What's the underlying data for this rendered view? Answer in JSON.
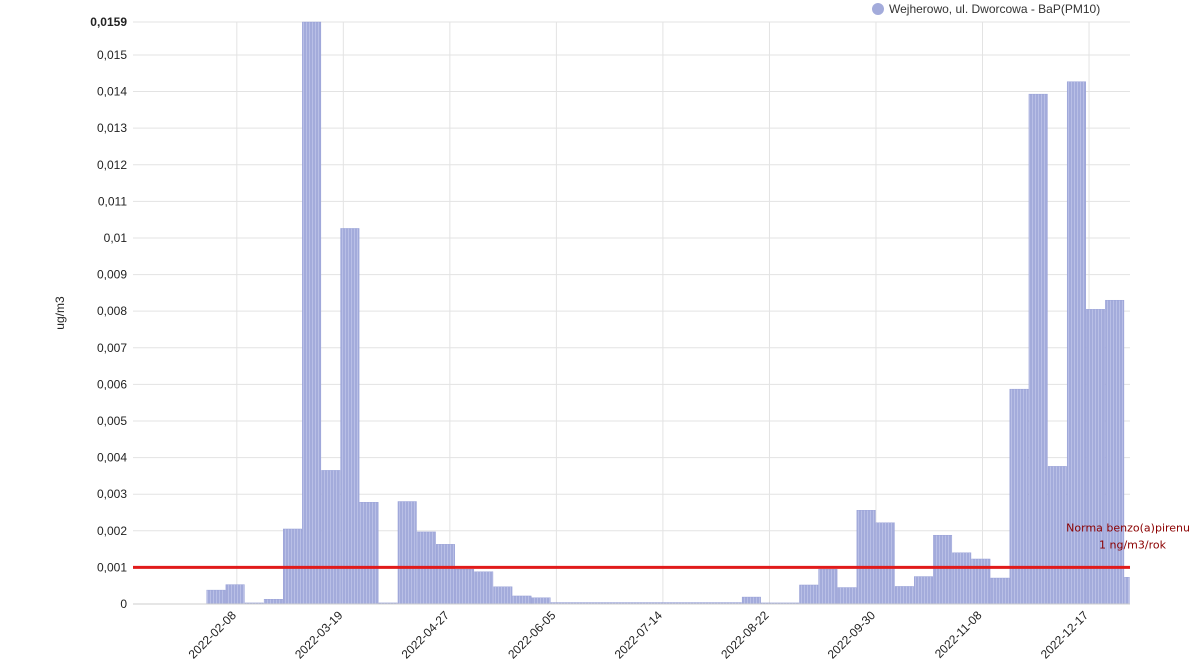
{
  "chart_data": {
    "type": "bar",
    "ylabel": "ug/m3",
    "ylim": [
      0,
      0.0159
    ],
    "y_ticks": [
      "0",
      "0,001",
      "0,002",
      "0,003",
      "0,004",
      "0,005",
      "0,006",
      "0,007",
      "0,008",
      "0,009",
      "0,01",
      "0,011",
      "0,012",
      "0,013",
      "0,014",
      "0,015",
      "0,0159"
    ],
    "x_tick_labels": [
      "2022-02-08",
      "2022-03-19",
      "2022-04-27",
      "2022-06-05",
      "2022-07-14",
      "2022-08-22",
      "2022-09-30",
      "2022-11-08",
      "2022-12-17"
    ],
    "x_range": [
      "2022-01-01",
      "2022-12-31"
    ],
    "grid": true,
    "legend_position": "top-right",
    "series": [
      {
        "name": "Wejherowo, ul. Dworcowa - BaP(PM10)",
        "color": "#a3abdb",
        "bars": [
          {
            "start": "2022-01-01",
            "end": "2022-01-28",
            "value": 0
          },
          {
            "start": "2022-01-28",
            "end": "2022-02-04",
            "value": 0.00038
          },
          {
            "start": "2022-02-04",
            "end": "2022-02-11",
            "value": 0.00053
          },
          {
            "start": "2022-02-11",
            "end": "2022-02-18",
            "value": 3e-05
          },
          {
            "start": "2022-02-18",
            "end": "2022-02-25",
            "value": 0.00013
          },
          {
            "start": "2022-02-25",
            "end": "2022-03-04",
            "value": 0.00205
          },
          {
            "start": "2022-03-04",
            "end": "2022-03-11",
            "value": 0.0159
          },
          {
            "start": "2022-03-11",
            "end": "2022-03-18",
            "value": 0.00365
          },
          {
            "start": "2022-03-18",
            "end": "2022-03-25",
            "value": 0.01026
          },
          {
            "start": "2022-03-25",
            "end": "2022-04-01",
            "value": 0.00278
          },
          {
            "start": "2022-04-01",
            "end": "2022-04-08",
            "value": 3e-05
          },
          {
            "start": "2022-04-08",
            "end": "2022-04-15",
            "value": 0.0028
          },
          {
            "start": "2022-04-15",
            "end": "2022-04-22",
            "value": 0.00197
          },
          {
            "start": "2022-04-22",
            "end": "2022-04-29",
            "value": 0.00163
          },
          {
            "start": "2022-04-29",
            "end": "2022-05-06",
            "value": 0.00095
          },
          {
            "start": "2022-05-06",
            "end": "2022-05-13",
            "value": 0.00088
          },
          {
            "start": "2022-05-13",
            "end": "2022-05-20",
            "value": 0.00047
          },
          {
            "start": "2022-05-20",
            "end": "2022-05-27",
            "value": 0.00022
          },
          {
            "start": "2022-05-27",
            "end": "2022-06-03",
            "value": 0.00017
          },
          {
            "start": "2022-06-03",
            "end": "2022-08-12",
            "value": 4e-05
          },
          {
            "start": "2022-08-12",
            "end": "2022-08-19",
            "value": 0.00019
          },
          {
            "start": "2022-08-19",
            "end": "2022-09-02",
            "value": 3e-05
          },
          {
            "start": "2022-09-02",
            "end": "2022-09-09",
            "value": 0.00052
          },
          {
            "start": "2022-09-09",
            "end": "2022-09-16",
            "value": 0.00095
          },
          {
            "start": "2022-09-16",
            "end": "2022-09-23",
            "value": 0.00045
          },
          {
            "start": "2022-09-23",
            "end": "2022-09-30",
            "value": 0.00256
          },
          {
            "start": "2022-09-30",
            "end": "2022-10-07",
            "value": 0.00222
          },
          {
            "start": "2022-10-07",
            "end": "2022-10-14",
            "value": 0.00048
          },
          {
            "start": "2022-10-14",
            "end": "2022-10-21",
            "value": 0.00075
          },
          {
            "start": "2022-10-21",
            "end": "2022-10-28",
            "value": 0.00188
          },
          {
            "start": "2022-10-28",
            "end": "2022-11-04",
            "value": 0.0014
          },
          {
            "start": "2022-11-04",
            "end": "2022-11-11",
            "value": 0.00123
          },
          {
            "start": "2022-11-11",
            "end": "2022-11-18",
            "value": 0.00071
          },
          {
            "start": "2022-11-18",
            "end": "2022-11-25",
            "value": 0.00587
          },
          {
            "start": "2022-11-25",
            "end": "2022-12-02",
            "value": 0.01393
          },
          {
            "start": "2022-12-02",
            "end": "2022-12-09",
            "value": 0.00376
          },
          {
            "start": "2022-12-09",
            "end": "2022-12-16",
            "value": 0.01427
          },
          {
            "start": "2022-12-16",
            "end": "2022-12-23",
            "value": 0.00805
          },
          {
            "start": "2022-12-23",
            "end": "2022-12-30",
            "value": 0.0083
          },
          {
            "start": "2022-12-30",
            "end": "2023-01-06",
            "value": 0.00073
          }
        ]
      }
    ],
    "reference_line": {
      "value": 0.001,
      "color": "#e11b1b",
      "label_line1": "Norma benzo(a)pirenu",
      "label_line2": "1 ng/m3/rok"
    }
  }
}
